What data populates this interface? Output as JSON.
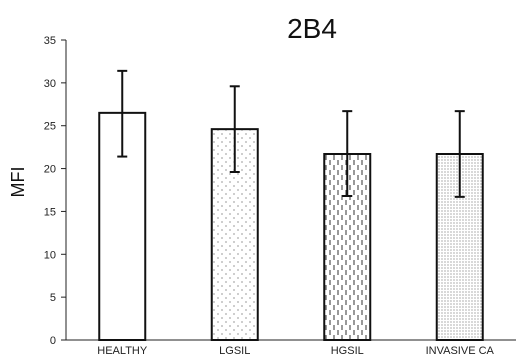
{
  "chart_data": {
    "type": "bar",
    "title": "2B4",
    "ylabel": "MFI",
    "xlabel": "",
    "ylim": [
      0,
      35
    ],
    "yticks": [
      0,
      5,
      10,
      15,
      20,
      25,
      30,
      35
    ],
    "categories": [
      "HEALTHY",
      "LGSIL",
      "HGSIL",
      "INVASIVE CA"
    ],
    "values": [
      26.5,
      24.6,
      21.7,
      21.7
    ],
    "error_low": [
      21.4,
      19.6,
      16.8,
      16.7
    ],
    "error_high": [
      31.4,
      29.6,
      26.7,
      26.7
    ],
    "fill_patterns": [
      "none",
      "sparse-dots",
      "dashed-vertical",
      "dense-dots"
    ],
    "grid": false
  }
}
